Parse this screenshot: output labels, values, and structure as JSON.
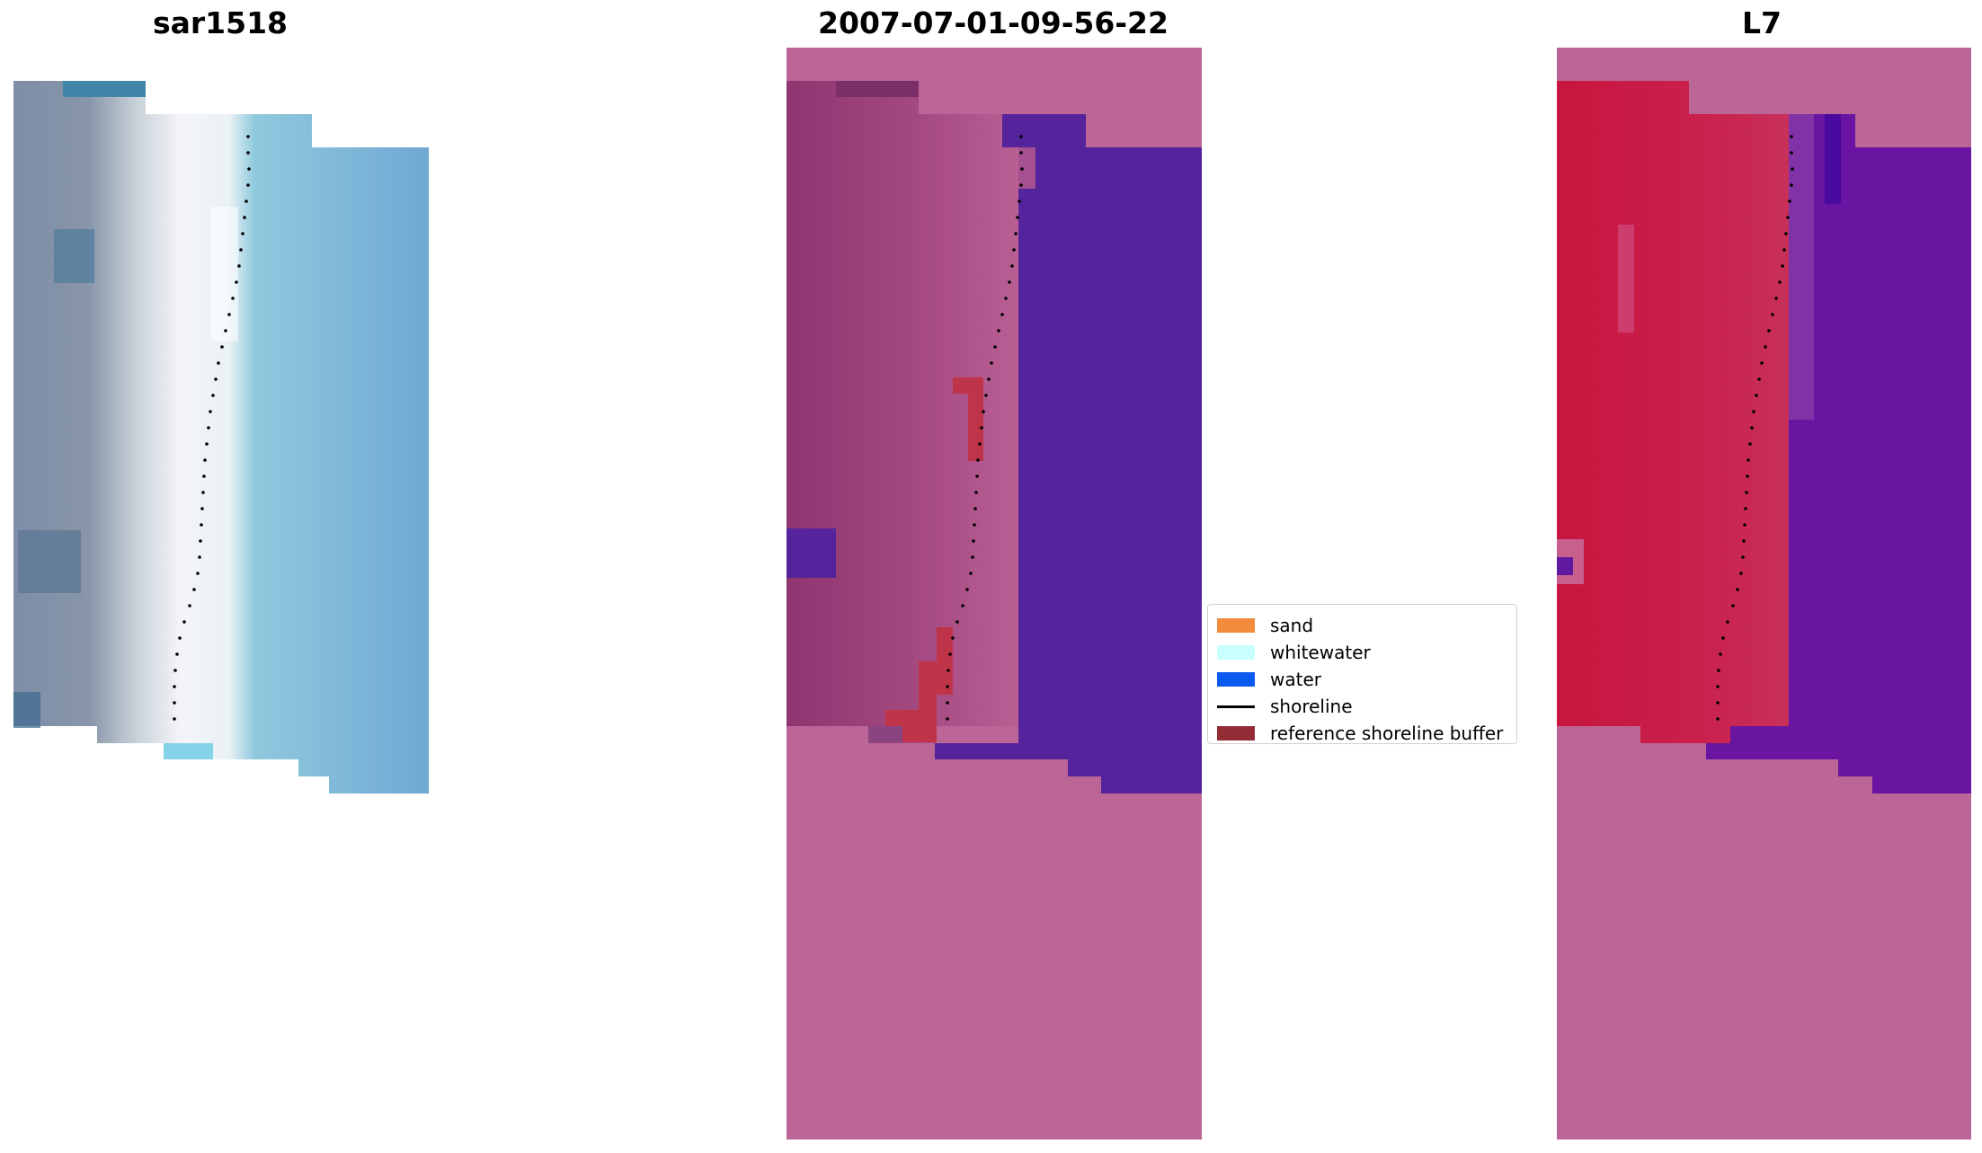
{
  "panels": [
    {
      "title": "sar1518"
    },
    {
      "title": "2007-07-01-09-56-22"
    },
    {
      "title": "L7"
    }
  ],
  "legend": {
    "items": [
      {
        "label": "sand",
        "color": "#f28c3c",
        "type": "patch"
      },
      {
        "label": "whitewater",
        "color": "#c8ffff",
        "type": "patch"
      },
      {
        "label": "water",
        "color": "#0a5af0",
        "type": "patch"
      },
      {
        "label": "shoreline",
        "color": "#000000",
        "type": "line"
      },
      {
        "label": "reference shoreline buffer",
        "color": "#942c36",
        "type": "patch"
      }
    ]
  },
  "colors": {
    "nodata_magenta": "#bb6696",
    "water_purple": "#55239b",
    "buffer_red": "#c0344a",
    "l7_red": "#c51a4a",
    "l7_purple": "#6a14a2"
  }
}
